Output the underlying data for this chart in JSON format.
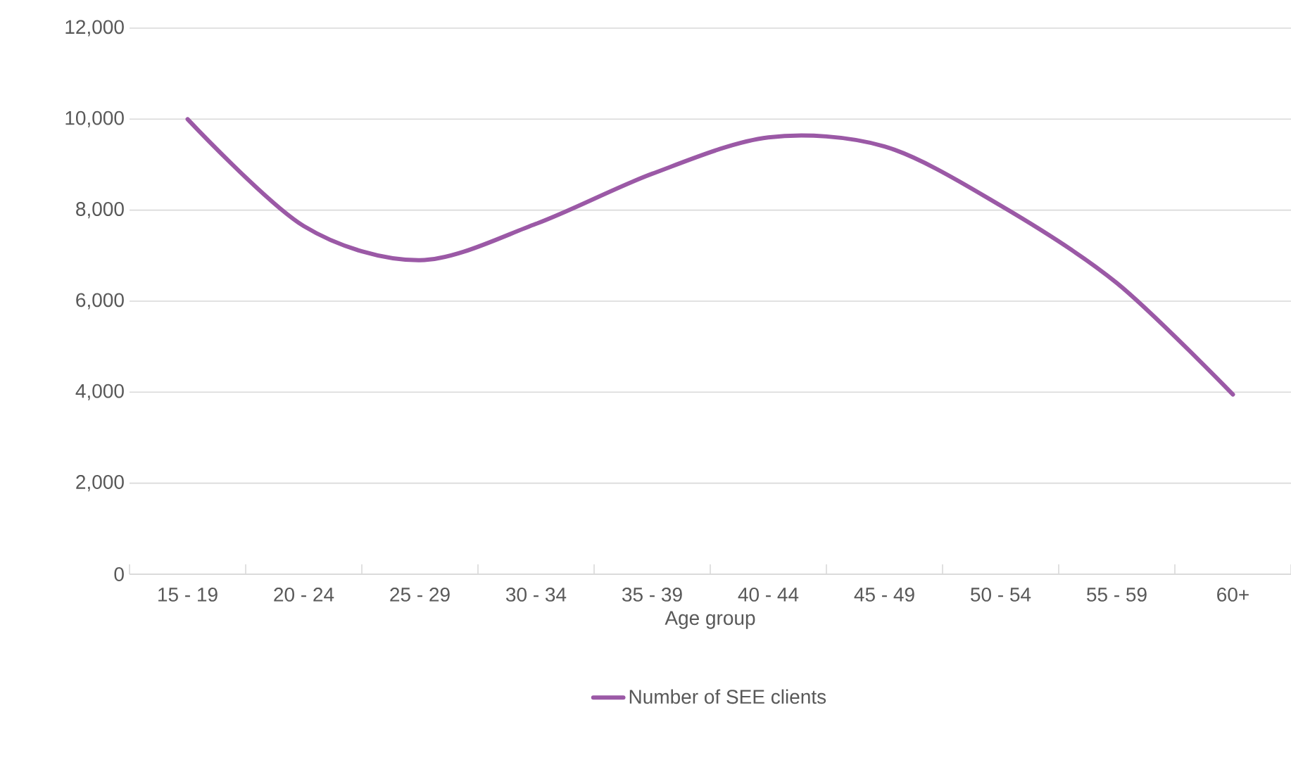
{
  "chart_data": {
    "type": "line",
    "xlabel": "Age group",
    "categories": [
      "15 - 19",
      "20 - 24",
      "25 - 29",
      "30 - 34",
      "35 - 39",
      "40 - 44",
      "45 - 49",
      "50 - 54",
      "55 - 59",
      "60+"
    ],
    "series": [
      {
        "name": "Number of SEE clients",
        "color": "#9b59a6",
        "values": [
          10000,
          7650,
          6900,
          7700,
          8800,
          9600,
          9400,
          8100,
          6400,
          3950
        ]
      }
    ],
    "ylim": [
      0,
      12000
    ],
    "yticks": [
      {
        "value": 0,
        "label": "0"
      },
      {
        "value": 2000,
        "label": "2,000"
      },
      {
        "value": 4000,
        "label": "4,000"
      },
      {
        "value": 6000,
        "label": "6,000"
      },
      {
        "value": 8000,
        "label": "8,000"
      },
      {
        "value": 10000,
        "label": "10,000"
      },
      {
        "value": 12000,
        "label": "12,000"
      }
    ],
    "grid": "y",
    "legend": "bottom",
    "marker": "none",
    "line_style": "solid"
  }
}
